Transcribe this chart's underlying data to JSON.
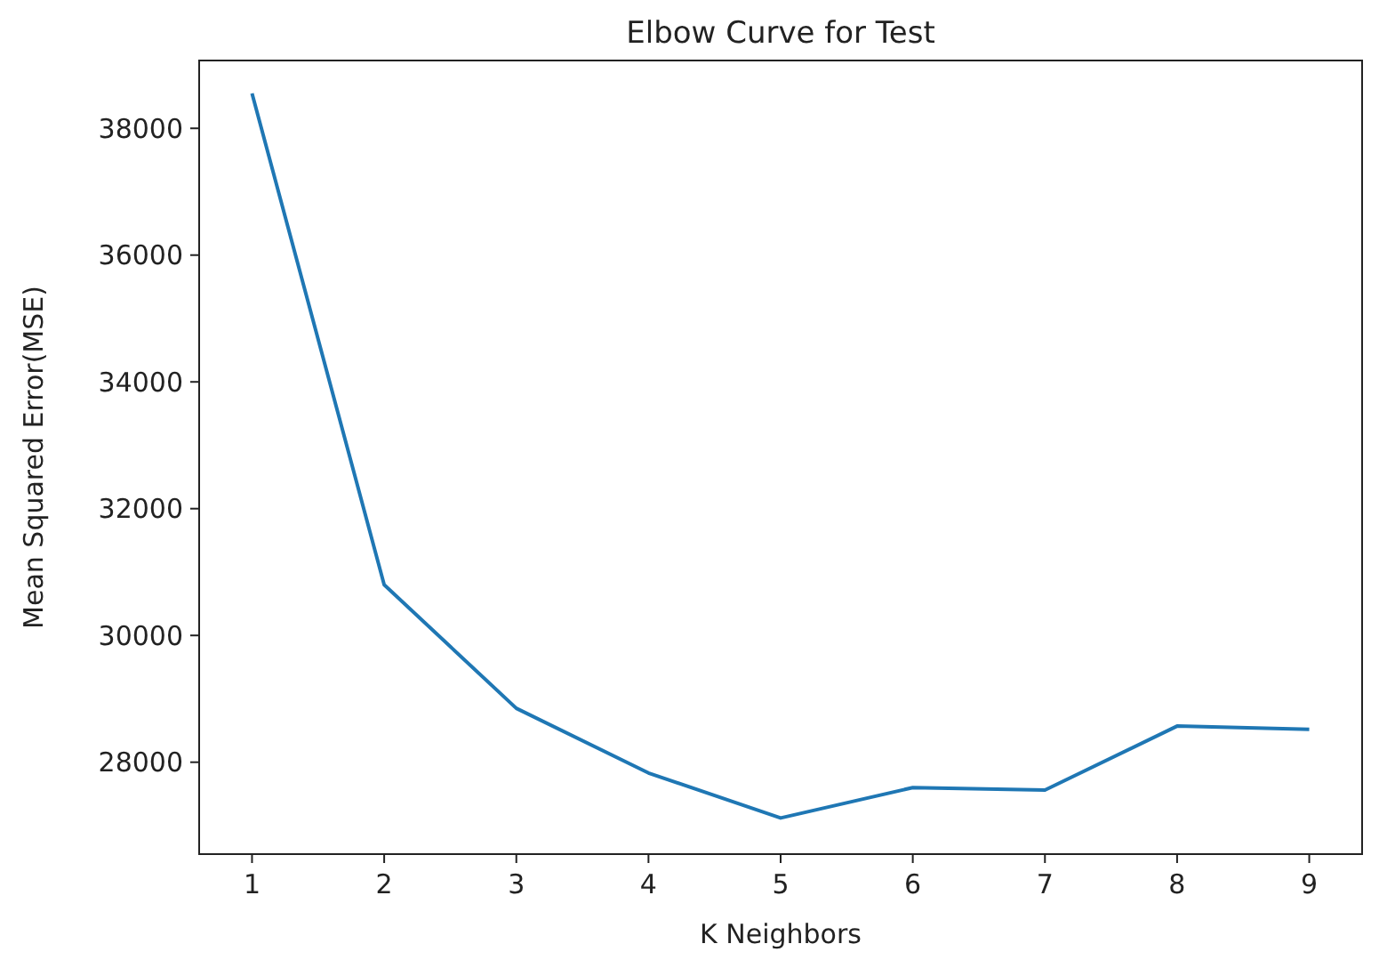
{
  "chart_data": {
    "type": "line",
    "title": "Elbow Curve for Test",
    "xlabel": "K Neighbors",
    "ylabel": "Mean Squared Error(MSE)",
    "x": [
      1,
      2,
      3,
      4,
      5,
      6,
      7,
      8,
      9
    ],
    "series": [
      {
        "color": "#1f77b4",
        "values": [
          38550,
          30800,
          28850,
          27830,
          27120,
          27600,
          27560,
          28570,
          28520
        ]
      }
    ],
    "xlim": [
      0.6,
      9.4
    ],
    "xticks": [
      1,
      2,
      3,
      4,
      5,
      6,
      7,
      8,
      9
    ],
    "ylim": [
      26550,
      39070
    ],
    "yticks": [
      28000,
      30000,
      32000,
      34000,
      36000,
      38000
    ]
  }
}
